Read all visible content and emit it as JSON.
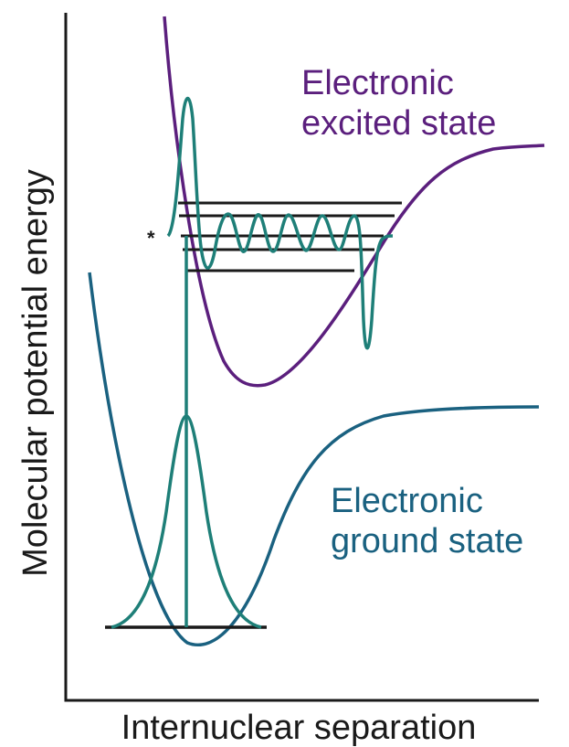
{
  "axes": {
    "x_label": "Internuclear separation",
    "y_label": "Molecular potential energy"
  },
  "excited_state": {
    "label_line1": "Electronic",
    "label_line2": "excited state",
    "color": "#5b1f7d"
  },
  "ground_state": {
    "label_line1": "Electronic",
    "label_line2": "ground state",
    "color": "#1a6180"
  },
  "wavefunction": {
    "color": "#1e7f78"
  },
  "level_color": "#1a1a1a",
  "marker": "*"
}
